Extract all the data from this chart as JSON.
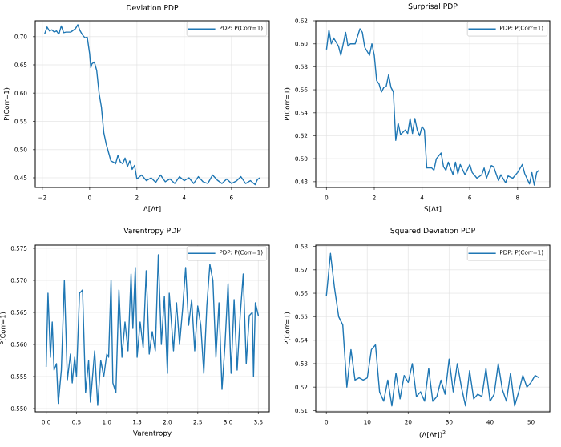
{
  "chart_data": [
    {
      "type": "line",
      "title": "Deviation PDP",
      "xlabel": "Δ[Δt]",
      "ylabel": "P(Corr=1)",
      "grid": true,
      "legend": "top right",
      "xlim": [
        -2.3,
        7.6
      ],
      "ylim": [
        0.433,
        0.728
      ],
      "xticks": [
        {
          "value": -2,
          "label": "−2"
        },
        0,
        2,
        4,
        6
      ],
      "yticks": [
        {
          "value": 0.45,
          "label": "0.45"
        },
        {
          "value": 0.5,
          "label": "0.50"
        },
        {
          "value": 0.55,
          "label": "0.55"
        },
        {
          "value": 0.6,
          "label": "0.60"
        },
        {
          "value": 0.65,
          "label": "0.65"
        },
        {
          "value": 0.7,
          "label": "0.70"
        }
      ],
      "x": [
        -1.9,
        -1.8,
        -1.7,
        -1.6,
        -1.5,
        -1.4,
        -1.3,
        -1.2,
        -1.1,
        -1.0,
        -0.8,
        -0.6,
        -0.5,
        -0.4,
        -0.3,
        -0.2,
        -0.1,
        0.0,
        0.05,
        0.1,
        0.2,
        0.3,
        0.4,
        0.5,
        0.6,
        0.7,
        0.8,
        0.9,
        1.0,
        1.1,
        1.2,
        1.3,
        1.4,
        1.5,
        1.6,
        1.7,
        1.8,
        1.9,
        2.0,
        2.2,
        2.4,
        2.6,
        2.8,
        3.0,
        3.2,
        3.4,
        3.6,
        3.8,
        4.0,
        4.2,
        4.4,
        4.6,
        4.8,
        5.0,
        5.2,
        5.4,
        5.6,
        5.8,
        6.0,
        6.2,
        6.4,
        6.6,
        6.8,
        7.0,
        7.1,
        7.2
      ],
      "series": [
        {
          "name": "PDP: P(Corr=1)",
          "color": "#1f77b4",
          "values": [
            0.705,
            0.717,
            0.71,
            0.712,
            0.708,
            0.71,
            0.704,
            0.719,
            0.707,
            0.708,
            0.708,
            0.714,
            0.721,
            0.71,
            0.703,
            0.698,
            0.699,
            0.67,
            0.645,
            0.652,
            0.655,
            0.64,
            0.6,
            0.575,
            0.53,
            0.51,
            0.495,
            0.48,
            0.478,
            0.475,
            0.49,
            0.478,
            0.475,
            0.485,
            0.47,
            0.48,
            0.465,
            0.472,
            0.448,
            0.455,
            0.445,
            0.45,
            0.442,
            0.455,
            0.443,
            0.448,
            0.44,
            0.452,
            0.445,
            0.45,
            0.44,
            0.452,
            0.443,
            0.44,
            0.455,
            0.446,
            0.44,
            0.448,
            0.44,
            0.444,
            0.452,
            0.44,
            0.445,
            0.438,
            0.447,
            0.45
          ]
        }
      ]
    },
    {
      "type": "line",
      "title": "Surprisal PDP",
      "xlabel": "S[Δt]",
      "ylabel": "P(Corr=1)",
      "grid": true,
      "legend": "top right",
      "xlim": [
        -0.45,
        9.35
      ],
      "ylim": [
        0.475,
        0.62
      ],
      "xticks": [
        0,
        2,
        4,
        6,
        8
      ],
      "yticks": [
        0.48,
        {
          "value": 0.5,
          "label": "0.50"
        },
        0.52,
        0.54,
        0.56,
        0.58,
        {
          "value": 0.6,
          "label": "0.60"
        },
        0.62
      ],
      "x": [
        0,
        0.1,
        0.2,
        0.3,
        0.5,
        0.6,
        0.8,
        0.9,
        1.0,
        1.2,
        1.4,
        1.5,
        1.6,
        1.8,
        1.9,
        2.0,
        2.1,
        2.2,
        2.3,
        2.4,
        2.5,
        2.6,
        2.7,
        2.8,
        2.9,
        3.0,
        3.1,
        3.3,
        3.4,
        3.5,
        3.6,
        3.7,
        3.8,
        3.9,
        4.0,
        4.1,
        4.2,
        4.4,
        4.5,
        4.6,
        4.8,
        4.9,
        5.0,
        5.1,
        5.3,
        5.4,
        5.5,
        5.6,
        5.8,
        6.0,
        6.1,
        6.3,
        6.5,
        6.6,
        6.7,
        6.9,
        7.0,
        7.2,
        7.3,
        7.5,
        7.6,
        7.8,
        8.0,
        8.2,
        8.3,
        8.5,
        8.6,
        8.7,
        8.8,
        8.9
      ],
      "series": [
        {
          "name": "PDP: P(Corr=1)",
          "color": "#1f77b4",
          "values": [
            0.595,
            0.612,
            0.6,
            0.605,
            0.598,
            0.59,
            0.61,
            0.598,
            0.6,
            0.6,
            0.613,
            0.61,
            0.597,
            0.59,
            0.6,
            0.59,
            0.568,
            0.565,
            0.558,
            0.562,
            0.563,
            0.573,
            0.562,
            0.558,
            0.516,
            0.531,
            0.521,
            0.525,
            0.522,
            0.535,
            0.522,
            0.535,
            0.525,
            0.52,
            0.528,
            0.525,
            0.492,
            0.492,
            0.49,
            0.5,
            0.505,
            0.493,
            0.49,
            0.497,
            0.486,
            0.497,
            0.487,
            0.495,
            0.486,
            0.495,
            0.488,
            0.483,
            0.486,
            0.492,
            0.483,
            0.494,
            0.493,
            0.481,
            0.486,
            0.479,
            0.485,
            0.483,
            0.488,
            0.495,
            0.487,
            0.478,
            0.488,
            0.477,
            0.488,
            0.49
          ]
        }
      ]
    },
    {
      "type": "line",
      "title": "Varentropy PDP",
      "xlabel": "Varentropy",
      "ylabel": "P(Corr=1)",
      "grid": true,
      "legend": "top right",
      "xlim": [
        -0.18,
        3.68
      ],
      "ylim": [
        0.5495,
        0.5755
      ],
      "xticks": [
        {
          "value": 0,
          "label": "0.0"
        },
        0.5,
        {
          "value": 1,
          "label": "1.0"
        },
        1.5,
        {
          "value": 2,
          "label": "2.0"
        },
        2.5,
        {
          "value": 3,
          "label": "3.0"
        },
        3.5
      ],
      "yticks": [
        {
          "value": 0.55,
          "label": "0.550"
        },
        0.555,
        {
          "value": 0.56,
          "label": "0.560"
        },
        0.565,
        {
          "value": 0.57,
          "label": "0.570"
        },
        0.575
      ],
      "x": [
        0,
        0.03,
        0.07,
        0.1,
        0.13,
        0.17,
        0.2,
        0.25,
        0.3,
        0.35,
        0.4,
        0.43,
        0.47,
        0.5,
        0.55,
        0.6,
        0.65,
        0.7,
        0.73,
        0.8,
        0.85,
        0.9,
        0.95,
        1.0,
        1.03,
        1.07,
        1.1,
        1.15,
        1.2,
        1.25,
        1.3,
        1.35,
        1.4,
        1.43,
        1.47,
        1.5,
        1.55,
        1.6,
        1.65,
        1.7,
        1.75,
        1.8,
        1.85,
        1.9,
        1.95,
        2.0,
        2.03,
        2.1,
        2.15,
        2.2,
        2.25,
        2.3,
        2.35,
        2.4,
        2.45,
        2.5,
        2.55,
        2.6,
        2.65,
        2.7,
        2.75,
        2.8,
        2.85,
        2.9,
        2.95,
        3.0,
        3.05,
        3.1,
        3.15,
        3.2,
        3.25,
        3.3,
        3.35,
        3.4,
        3.42,
        3.45,
        3.5
      ],
      "series": [
        {
          "name": "PDP: P(Corr=1)",
          "color": "#1f77b4",
          "values": [
            0.5565,
            0.568,
            0.558,
            0.5635,
            0.556,
            0.557,
            0.5508,
            0.556,
            0.57,
            0.5545,
            0.5585,
            0.554,
            0.558,
            0.555,
            0.568,
            0.5685,
            0.5525,
            0.5575,
            0.551,
            0.559,
            0.5505,
            0.5575,
            0.555,
            0.5585,
            0.558,
            0.57,
            0.554,
            0.5525,
            0.5685,
            0.558,
            0.5635,
            0.559,
            0.571,
            0.5625,
            0.572,
            0.558,
            0.5635,
            0.5595,
            0.5715,
            0.5585,
            0.562,
            0.559,
            0.574,
            0.56,
            0.5675,
            0.5555,
            0.568,
            0.559,
            0.5665,
            0.56,
            0.5655,
            0.572,
            0.563,
            0.567,
            0.559,
            0.566,
            0.563,
            0.5555,
            0.566,
            0.5725,
            0.57,
            0.558,
            0.5665,
            0.553,
            0.56,
            0.5695,
            0.5555,
            0.567,
            0.556,
            0.5645,
            0.571,
            0.557,
            0.5645,
            0.565,
            0.555,
            0.5665,
            0.5645
          ]
        }
      ]
    },
    {
      "type": "line",
      "title": "Squared Deviation PDP",
      "xlabel": "(Δ[Δt])$^{2}$",
      "ylabel": "P(Corr=1)",
      "grid": true,
      "legend": "top right",
      "xlim": [
        -2.6,
        54.6
      ],
      "ylim": [
        0.5095,
        0.5805
      ],
      "xticks": [
        0,
        10,
        20,
        30,
        40,
        50
      ],
      "yticks": [
        0.51,
        0.52,
        0.53,
        0.54,
        0.55,
        0.56,
        0.57,
        0.58
      ],
      "x": [
        0,
        1,
        2,
        3,
        4,
        5,
        6,
        7,
        8,
        9,
        10,
        11,
        12,
        13,
        14,
        15,
        16,
        17,
        18,
        19,
        20,
        21,
        22,
        23,
        24,
        25,
        26,
        27,
        28,
        29,
        30,
        31,
        32,
        33,
        34,
        35,
        36,
        37,
        38,
        39,
        40,
        41,
        42,
        43,
        44,
        45,
        46,
        47,
        48,
        49,
        50,
        51,
        52
      ],
      "series": [
        {
          "name": "PDP: P(Corr=1)",
          "color": "#1f77b4",
          "values": [
            0.559,
            0.577,
            0.562,
            0.55,
            0.5465,
            0.52,
            0.536,
            0.523,
            0.524,
            0.523,
            0.524,
            0.536,
            0.538,
            0.518,
            0.514,
            0.523,
            0.512,
            0.526,
            0.515,
            0.525,
            0.522,
            0.53,
            0.516,
            0.518,
            0.514,
            0.528,
            0.514,
            0.516,
            0.523,
            0.517,
            0.532,
            0.518,
            0.53,
            0.52,
            0.512,
            0.527,
            0.515,
            0.517,
            0.516,
            0.528,
            0.514,
            0.517,
            0.53,
            0.519,
            0.514,
            0.526,
            0.512,
            0.518,
            0.525,
            0.52,
            0.522,
            0.525,
            0.524
          ]
        }
      ]
    }
  ]
}
